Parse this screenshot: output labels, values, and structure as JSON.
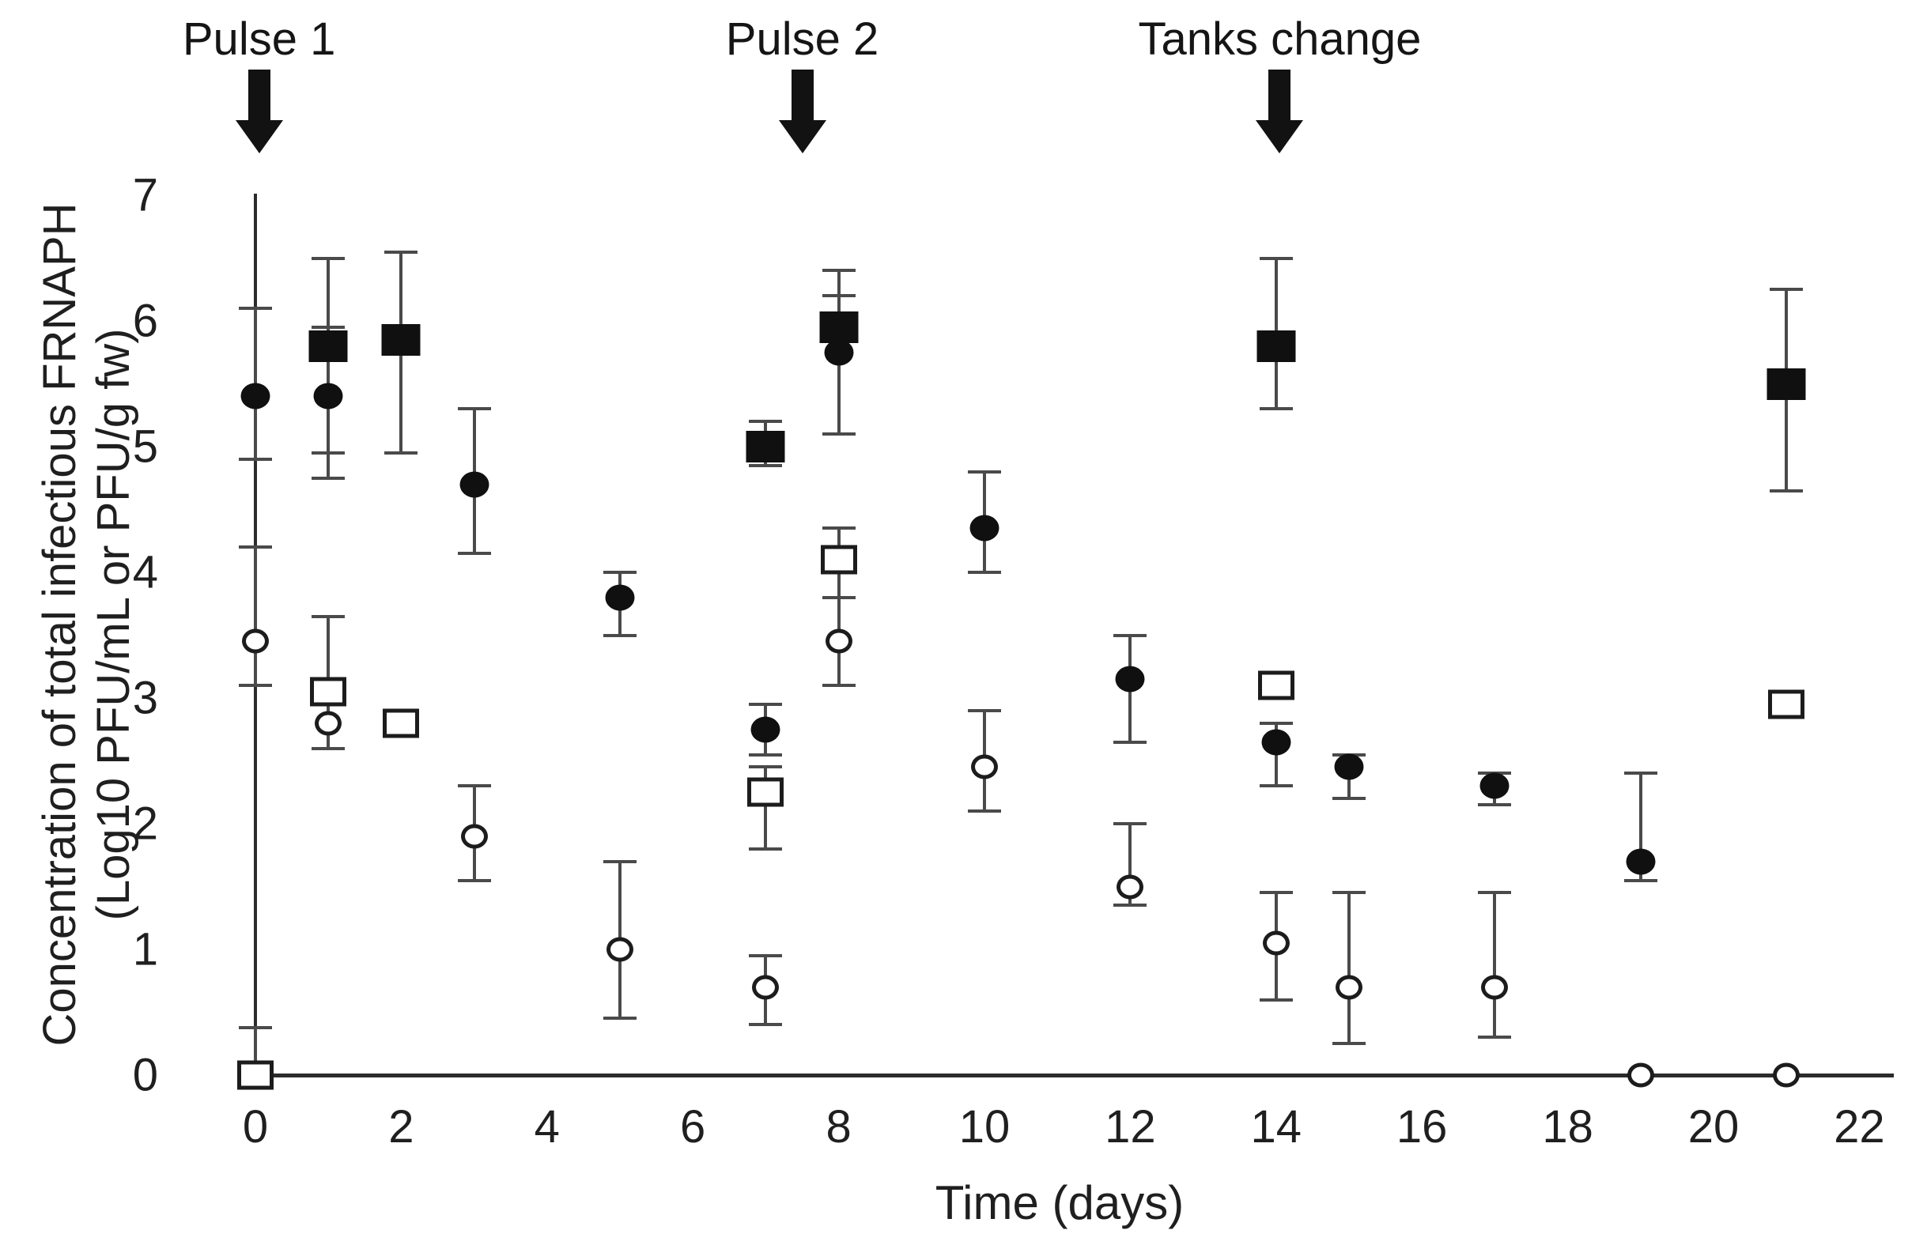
{
  "chart_data": {
    "type": "scatter",
    "title": "",
    "xlabel": "Time (days)",
    "ylabel_line1": "Concentration of total infectious FRNAPH",
    "ylabel_line2": "(Log10 PFU/mL or PFU/g fw)",
    "xlim": [
      0,
      22
    ],
    "ylim": [
      0,
      7
    ],
    "x_ticks": [
      0,
      2,
      4,
      6,
      8,
      10,
      12,
      14,
      16,
      18,
      20,
      22
    ],
    "y_ticks": [
      0,
      1,
      2,
      3,
      4,
      5,
      6,
      7
    ],
    "grid": false,
    "legend_position": "none",
    "marker_colors": {
      "filled": "#101010",
      "open_stroke": "#1c1c1c",
      "error_bar": "#4a4a4a"
    },
    "annotations": [
      {
        "label": "Pulse 1",
        "day": 0.05
      },
      {
        "label": "Pulse 2",
        "day": 7.5
      },
      {
        "label": "Tanks change",
        "day": 14.05
      }
    ],
    "series": [
      {
        "name": "filled-circle-series",
        "marker": "filled-circle",
        "points": [
          {
            "x": 0,
            "y": 5.4,
            "lo": 4.9,
            "hi": 6.1
          },
          {
            "x": 1,
            "y": 5.4,
            "lo": 4.75,
            "hi": 5.95
          },
          {
            "x": 3,
            "y": 4.7,
            "lo": 4.15,
            "hi": 5.3
          },
          {
            "x": 5,
            "y": 3.8,
            "lo": 3.5,
            "hi": 4.0
          },
          {
            "x": 7,
            "y": 2.75,
            "lo": 2.55,
            "hi": 2.95
          },
          {
            "x": 8,
            "y": 5.75,
            "lo": 5.1,
            "hi": 6.2
          },
          {
            "x": 10,
            "y": 4.35,
            "lo": 4.0,
            "hi": 4.8
          },
          {
            "x": 12,
            "y": 3.15,
            "lo": 2.65,
            "hi": 3.5
          },
          {
            "x": 14,
            "y": 2.65,
            "lo": 2.3,
            "hi": 2.8
          },
          {
            "x": 15,
            "y": 2.45,
            "lo": 2.2,
            "hi": 2.55
          },
          {
            "x": 17,
            "y": 2.3,
            "lo": 2.15,
            "hi": 2.4
          },
          {
            "x": 19,
            "y": 1.7,
            "lo": 1.55,
            "hi": 2.4
          }
        ]
      },
      {
        "name": "filled-square-series",
        "marker": "filled-square",
        "points": [
          {
            "x": 1,
            "y": 5.8,
            "lo": 4.95,
            "hi": 6.5
          },
          {
            "x": 2,
            "y": 5.85,
            "lo": 4.95,
            "hi": 6.55
          },
          {
            "x": 7,
            "y": 5.0,
            "lo": 4.85,
            "hi": 5.2
          },
          {
            "x": 8,
            "y": 5.95,
            "lo": 5.1,
            "hi": 6.4
          },
          {
            "x": 14,
            "y": 5.8,
            "lo": 5.3,
            "hi": 6.5
          },
          {
            "x": 21,
            "y": 5.5,
            "lo": 4.65,
            "hi": 6.25
          }
        ]
      },
      {
        "name": "open-square-series",
        "marker": "open-square",
        "points": [
          {
            "x": 0,
            "y": 0.0,
            "lo": 0.0,
            "hi": 0.38
          },
          {
            "x": 1,
            "y": 3.05,
            "lo": 2.6,
            "hi": 3.65
          },
          {
            "x": 2,
            "y": 2.8
          },
          {
            "x": 7,
            "y": 2.25,
            "lo": 1.8,
            "hi": 2.45
          },
          {
            "x": 8,
            "y": 4.1,
            "lo": 3.8,
            "hi": 4.35
          },
          {
            "x": 14,
            "y": 3.1
          },
          {
            "x": 21,
            "y": 2.95
          }
        ]
      },
      {
        "name": "open-circle-series",
        "marker": "open-circle",
        "points": [
          {
            "x": 0,
            "y": 3.45,
            "lo": 3.1,
            "hi": 4.2
          },
          {
            "x": 1,
            "y": 2.8,
            "lo": 2.6,
            "hi": 2.95
          },
          {
            "x": 3,
            "y": 1.9,
            "lo": 1.55,
            "hi": 2.3
          },
          {
            "x": 5,
            "y": 1.0,
            "lo": 0.45,
            "hi": 1.7
          },
          {
            "x": 7,
            "y": 0.7,
            "lo": 0.4,
            "hi": 0.95
          },
          {
            "x": 8,
            "y": 3.45,
            "lo": 3.1,
            "hi": 3.8
          },
          {
            "x": 10,
            "y": 2.45,
            "lo": 2.1,
            "hi": 2.9
          },
          {
            "x": 12,
            "y": 1.5,
            "lo": 1.35,
            "hi": 2.0
          },
          {
            "x": 14,
            "y": 1.05,
            "lo": 0.6,
            "hi": 1.45
          },
          {
            "x": 15,
            "y": 0.7,
            "lo": 0.25,
            "hi": 1.45
          },
          {
            "x": 17,
            "y": 0.7,
            "lo": 0.3,
            "hi": 1.45
          },
          {
            "x": 19,
            "y": 0.0
          },
          {
            "x": 21,
            "y": 0.0
          }
        ]
      }
    ]
  }
}
